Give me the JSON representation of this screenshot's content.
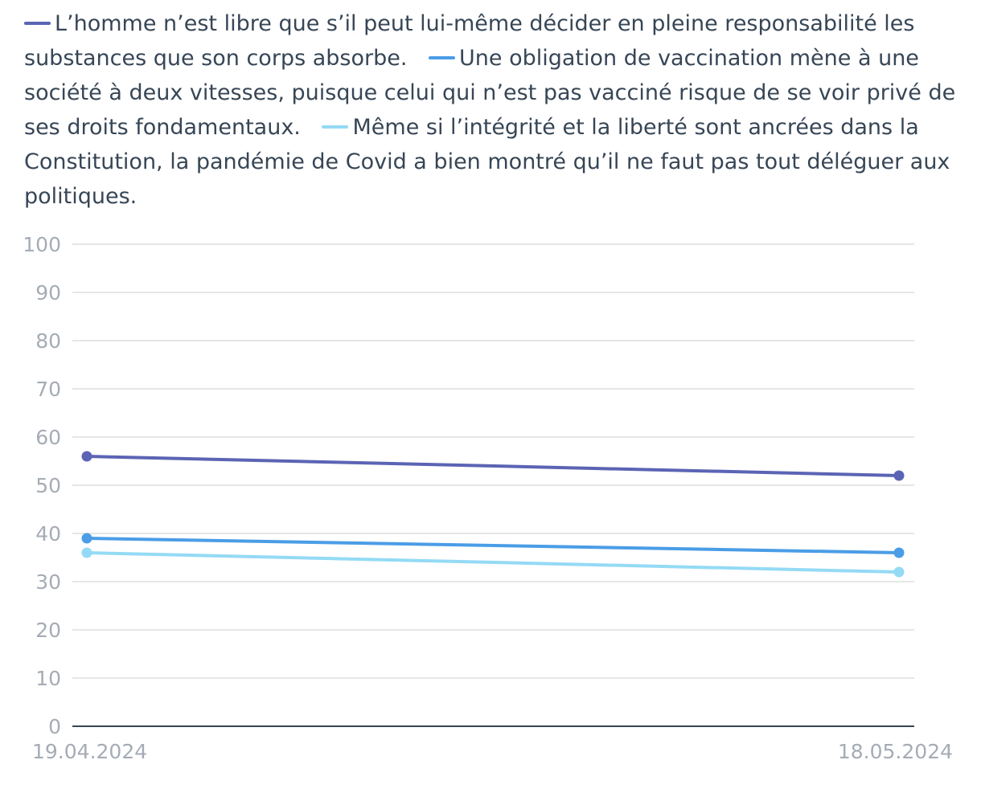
{
  "chart_data": {
    "type": "line",
    "title": "",
    "xlabel": "",
    "ylabel": "",
    "x": [
      "19.04.2024",
      "18.05.2024"
    ],
    "ylim": [
      0,
      100
    ],
    "yticks": [
      "0",
      "10",
      "20",
      "30",
      "40",
      "50",
      "60",
      "70",
      "80",
      "90",
      "100"
    ],
    "grid": true,
    "legend_position": "top",
    "series": [
      {
        "name": "L’homme n’est libre que s’il peut lui-même décider en pleine responsabilité les substances que son corps absorbe.",
        "values": [
          56,
          52
        ],
        "color": "#5b64b4"
      },
      {
        "name": "Une obligation de vaccination mène à une société à deux vitesses, puisque celui qui n’est pas vacciné risque de se voir privé de ses droits fondamentaux.",
        "values": [
          39,
          36
        ],
        "color": "#4a9de6"
      },
      {
        "name": "Même si l’intégrité et la liberté sont ancrées dans la Constitution, la pandémie de Covid a bien montré qu’il ne faut pas tout déléguer aux politiques.",
        "values": [
          36,
          32
        ],
        "color": "#94daf5"
      }
    ]
  }
}
